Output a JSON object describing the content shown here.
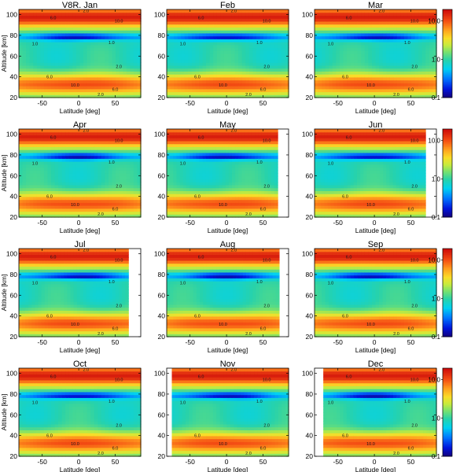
{
  "chart_data": {
    "type": "heatmap",
    "colormap": "rainbow",
    "colorbar": {
      "scale": "log",
      "range": [
        0.1,
        20
      ],
      "tick_labels": [
        "10.0",
        "1.0",
        "0.1"
      ],
      "tick_values": [
        10,
        1,
        0.1
      ]
    },
    "shared_axes": {
      "xlabel": "Latitude [deg]",
      "ylabel": "Altitude [km]",
      "xticks": [
        "-50",
        "0",
        "50"
      ],
      "xtick_values": [
        -50,
        0,
        50
      ],
      "yticks": [
        "20",
        "40",
        "60",
        "80",
        "100"
      ],
      "ytick_values": [
        20,
        40,
        60,
        80,
        100
      ],
      "ylim": [
        20,
        105
      ]
    },
    "contour_levels": [
      1.0,
      2.0,
      6.0,
      10.0
    ],
    "panels": [
      {
        "title": "V8R. Jan",
        "xlim": [
          -82,
          85
        ],
        "data_lat": [
          -82,
          85
        ]
      },
      {
        "title": "Feb",
        "xlim": [
          -82,
          85
        ],
        "data_lat": [
          -82,
          85
        ]
      },
      {
        "title": "Mar",
        "xlim": [
          -82,
          85
        ],
        "data_lat": [
          -82,
          85
        ]
      },
      {
        "title": "Apr",
        "xlim": [
          -82,
          85
        ],
        "data_lat": [
          -82,
          85
        ]
      },
      {
        "title": "May",
        "xlim": [
          -82,
          85
        ],
        "data_lat": [
          -82,
          70
        ]
      },
      {
        "title": "Jun",
        "xlim": [
          -82,
          85
        ],
        "data_lat": [
          -82,
          70
        ]
      },
      {
        "title": "Jul",
        "xlim": [
          -82,
          85
        ],
        "data_lat": [
          -82,
          68
        ]
      },
      {
        "title": "Aug",
        "xlim": [
          -82,
          85
        ],
        "data_lat": [
          -82,
          72
        ]
      },
      {
        "title": "Sep",
        "xlim": [
          -82,
          85
        ],
        "data_lat": [
          -82,
          85
        ]
      },
      {
        "title": "Oct",
        "xlim": [
          -82,
          85
        ],
        "data_lat": [
          -82,
          85
        ]
      },
      {
        "title": "Nov",
        "xlim": [
          -82,
          85
        ],
        "data_lat": [
          -75,
          85
        ]
      },
      {
        "title": "Dec",
        "xlim": [
          -82,
          85
        ],
        "data_lat": [
          -70,
          85
        ]
      }
    ]
  }
}
